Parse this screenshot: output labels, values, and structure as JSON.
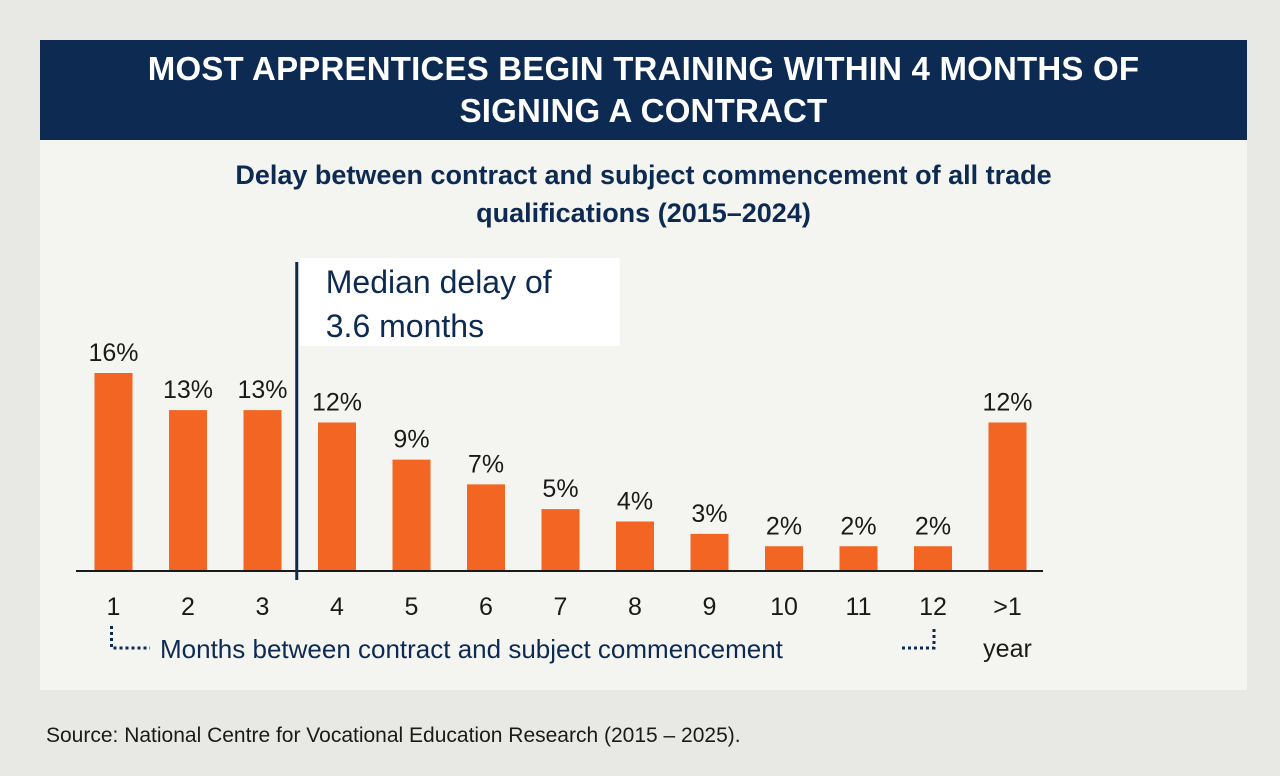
{
  "header": {
    "title_line1": "MOST APPRENTICES BEGIN TRAINING WITHIN 4 MONTHS OF",
    "title_line2": "SIGNING A CONTRACT"
  },
  "chart_data": {
    "type": "bar",
    "subtitle_line1": "Delay between contract and subject commencement of all trade",
    "subtitle_line2": "qualifications (2015–2024)",
    "categories": [
      "1",
      "2",
      "3",
      "4",
      "5",
      "6",
      "7",
      "8",
      "9",
      "10",
      "11",
      "12",
      ">1"
    ],
    "category_extra": {
      "12": "year"
    },
    "values": [
      16,
      13,
      13,
      12,
      9,
      7,
      5,
      4,
      3,
      2,
      2,
      2,
      12
    ],
    "value_labels": [
      "16%",
      "13%",
      "13%",
      "12%",
      "9%",
      "7%",
      "5%",
      "4%",
      "3%",
      "2%",
      "2%",
      "2%",
      "12%"
    ],
    "xlabel": "Months between contract and subject commencement",
    "ylim": [
      0,
      16
    ],
    "grid": false,
    "annotation": {
      "line1": "Median delay of",
      "line2": "3.6 months",
      "median_value": 3.6
    },
    "colors": {
      "bar": "#f26522",
      "navy": "#0d2a52",
      "text": "#1a1a1a"
    }
  },
  "source": "Source: National Centre for Vocational Education Research (2015 – 2025)."
}
